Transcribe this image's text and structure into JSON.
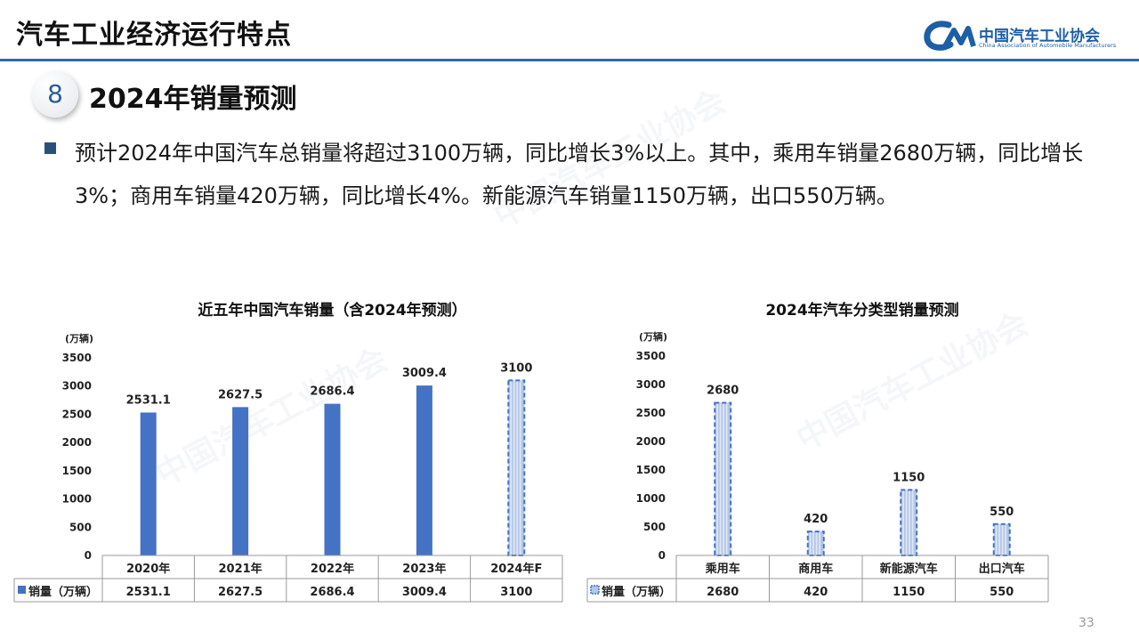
{
  "header": {
    "title": "汽车工业经济运行特点"
  },
  "logo": {
    "name_cn": "中国汽车工业协会",
    "name_en": "China Association of Automobile Manufacturers"
  },
  "section": {
    "number": "8",
    "title": "2024年销量预测"
  },
  "bullet": {
    "text": "预计2024年中国汽车总销量将超过3100万辆，同比增长3%以上。其中，乘用车销量2680万辆，同比增长3%；商用车销量420万辆，同比增长4%。新能源汽车销量1150万辆，出口550万辆。"
  },
  "page_number": "33",
  "colors": {
    "accent": "#2f6aa8",
    "bar": "#4472c4",
    "forecast_bar": "#b4c7e7"
  },
  "chart_data": [
    {
      "type": "bar",
      "title": "近五年中国汽车销量（含2024年预测）",
      "unit_label": "(万辆)",
      "categories": [
        "2020年",
        "2021年",
        "2022年",
        "2023年",
        "2024年F"
      ],
      "series": [
        {
          "name": "销量（万辆）",
          "values": [
            2531.1,
            2627.5,
            2686.4,
            3009.4,
            3100
          ]
        }
      ],
      "value_labels": [
        "2531.1",
        "2627.5",
        "2686.4",
        "3009.4",
        "3100"
      ],
      "forecast_flags": [
        false,
        false,
        false,
        false,
        true
      ],
      "ylim": [
        0,
        3500
      ],
      "yticks": [
        0,
        500,
        1000,
        1500,
        2000,
        2500,
        3000,
        3500
      ],
      "data_table": true
    },
    {
      "type": "bar",
      "title": "2024年汽车分类型销量预测",
      "unit_label": "(万辆)",
      "categories": [
        "乘用车",
        "商用车",
        "新能源汽车",
        "出口汽车"
      ],
      "series": [
        {
          "name": "销量（万辆）",
          "values": [
            2680,
            420,
            1150,
            550
          ]
        }
      ],
      "value_labels": [
        "2680",
        "420",
        "1150",
        "550"
      ],
      "forecast_flags": [
        true,
        true,
        true,
        true
      ],
      "ylim": [
        0,
        3500
      ],
      "yticks": [
        0,
        500,
        1000,
        1500,
        2000,
        2500,
        3000,
        3500
      ],
      "data_table": true
    }
  ]
}
